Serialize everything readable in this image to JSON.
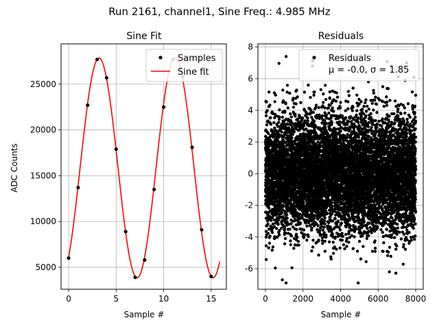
{
  "suptitle": "Run 2161, channel1, Sine Freq.: 4.985 MHz",
  "chart_data": [
    {
      "type": "scatter+line",
      "title": "Sine Fit",
      "xlabel": "Sample #",
      "ylabel": "ADC Counts",
      "xlim": [
        -0.8,
        16.6
      ],
      "ylim": [
        2600,
        29400
      ],
      "xticks": [
        0,
        5,
        10,
        15
      ],
      "yticks": [
        5000,
        10000,
        15000,
        20000,
        25000
      ],
      "grid": true,
      "legend_position": "top-right",
      "samples": {
        "name": "Samples",
        "x": [
          0,
          1,
          2,
          3,
          4,
          5,
          6,
          7,
          8,
          9,
          10,
          11,
          12,
          13,
          14,
          15
        ],
        "y": [
          6000,
          13700,
          22700,
          27700,
          25700,
          17900,
          8900,
          3900,
          5800,
          13500,
          22500,
          27700,
          25800,
          18100,
          9100,
          4000
        ]
      },
      "fit": {
        "name": "Sine fit",
        "color": "#ff0000",
        "amplitude": 12000,
        "offset": 15850,
        "period": 8.0,
        "peak_x": 3.2,
        "x_range": [
          0,
          15.9
        ]
      }
    },
    {
      "type": "scatter",
      "title": "Residuals",
      "xlabel": "Sample #",
      "ylabel": "",
      "xlim": [
        -400,
        8400
      ],
      "ylim": [
        -7.3,
        8.2
      ],
      "xticks": [
        0,
        2000,
        4000,
        6000,
        8000
      ],
      "yticks": [
        -6,
        -4,
        -2,
        0,
        2,
        4,
        6,
        8
      ],
      "grid": true,
      "legend_position": "top-right",
      "legend_label": "Residuals",
      "stats_label": "μ = -0.0, σ = 1.85",
      "mean": -0.0,
      "sigma": 1.85,
      "n_points": 8000,
      "notable_points": [
        {
          "x": 1100,
          "y": 7.4
        },
        {
          "x": 2500,
          "y": 6.8
        },
        {
          "x": 6700,
          "y": 6.8
        },
        {
          "x": 900,
          "y": -6.7
        },
        {
          "x": 1100,
          "y": -6.9
        },
        {
          "x": 6600,
          "y": -6.2
        },
        {
          "x": 7900,
          "y": 6.1
        }
      ]
    }
  ]
}
